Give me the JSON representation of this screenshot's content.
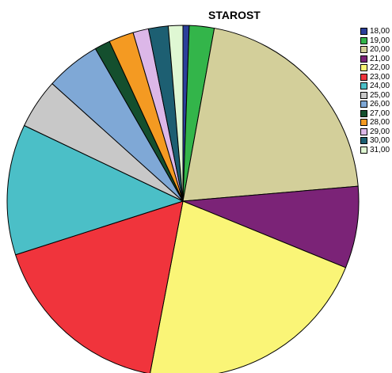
{
  "chart_data": {
    "type": "pie",
    "title": "STAROST",
    "legend_position": "right",
    "categories": [
      "18,00",
      "19,00",
      "20,00",
      "21,00",
      "22,00",
      "23,00",
      "24,00",
      "25,00",
      "26,00",
      "27,00",
      "28,00",
      "29,00",
      "30,00",
      "31,00"
    ],
    "values": [
      0.6,
      2.4,
      21.8,
      7.9,
      22.9,
      17.9,
      12.6,
      4.8,
      5.3,
      1.5,
      2.4,
      1.5,
      1.9,
      1.4
    ],
    "colors": [
      "#2b3f9a",
      "#33b54a",
      "#d3cf9a",
      "#7b2377",
      "#faf577",
      "#f0343c",
      "#4bbfc7",
      "#c8c8c8",
      "#7fa8d6",
      "#144f2e",
      "#f49a22",
      "#dcb7e8",
      "#1d5f72",
      "#dff7d3"
    ]
  }
}
